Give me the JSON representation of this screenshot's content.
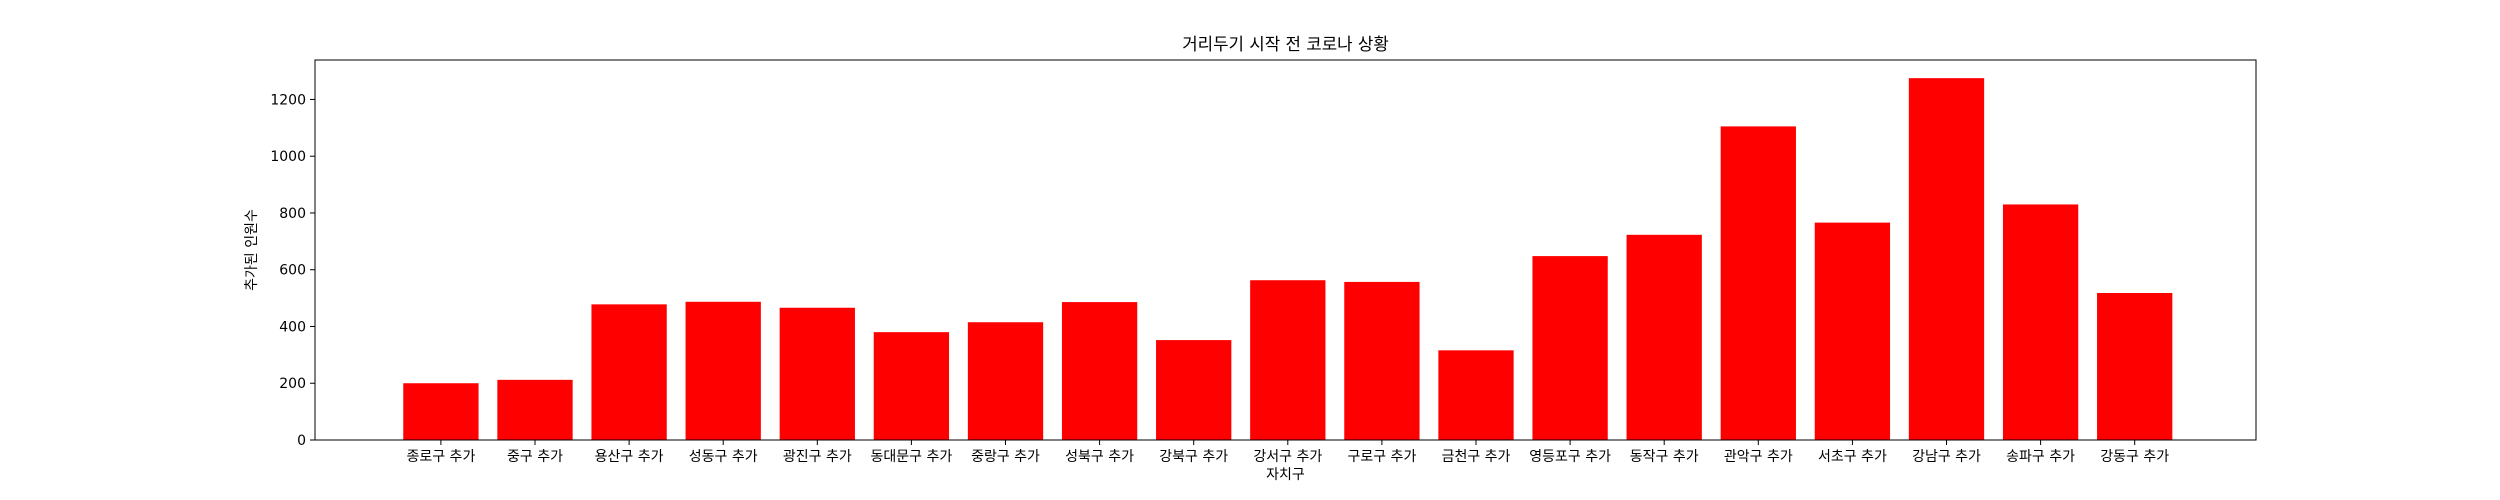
{
  "chart_data": {
    "type": "bar",
    "title": "거리두기 시작 전 코로나 상황",
    "xlabel": "자치구",
    "ylabel": "추가된 인원수",
    "categories": [
      "종로구 추가",
      "중구 추가",
      "용산구 추가",
      "성동구 추가",
      "광진구 추가",
      "동대문구 추가",
      "중랑구 추가",
      "성북구 추가",
      "강북구 추가",
      "강서구 추가",
      "구로구 추가",
      "금천구 추가",
      "영등포구 추가",
      "동작구 추가",
      "관악구 추가",
      "서초구 추가",
      "강남구 추가",
      "송파구 추가",
      "강동구 추가"
    ],
    "values": [
      200,
      212,
      478,
      487,
      466,
      380,
      415,
      486,
      352,
      563,
      557,
      316,
      648,
      723,
      1105,
      766,
      1275,
      830,
      518
    ],
    "ylim": [
      0,
      1339
    ],
    "yticks": [
      0,
      200,
      400,
      600,
      800,
      1000,
      1200
    ],
    "bar_color": "#ff0000",
    "grid": false,
    "legend": "none"
  }
}
